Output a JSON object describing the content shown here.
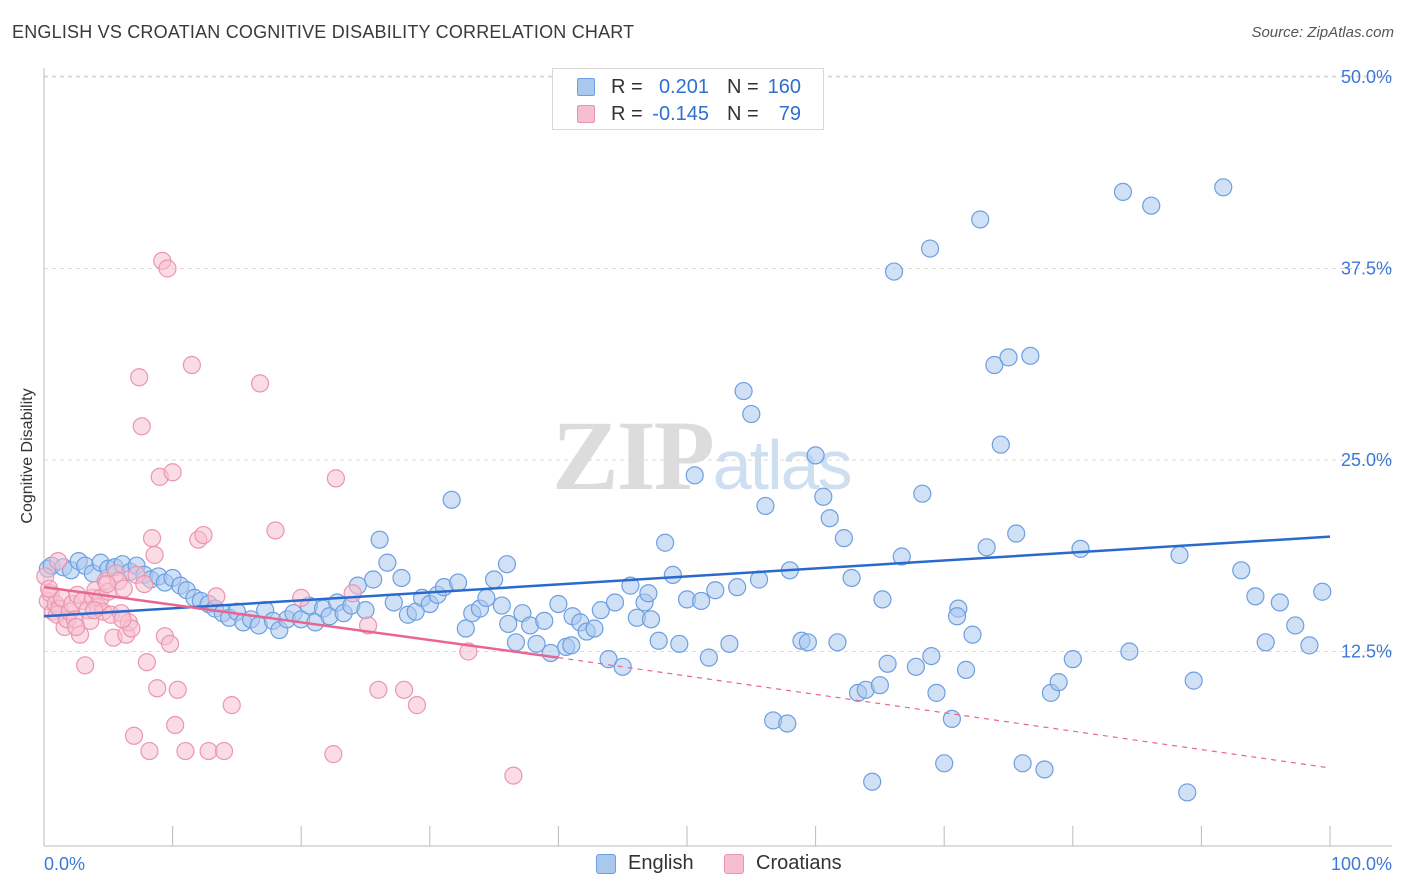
{
  "header": {
    "title": "ENGLISH VS CROATIAN COGNITIVE DISABILITY CORRELATION CHART",
    "source": "Source: ZipAtlas.com"
  },
  "watermark": {
    "zip": "ZIP",
    "atlas": "atlas"
  },
  "legend_top": {
    "rows": [
      {
        "r_label": "R =",
        "r_value": "0.201",
        "n_label": "N =",
        "n_value": "160"
      },
      {
        "r_label": "R =",
        "r_value": "-0.145",
        "n_label": "N =",
        "n_value": "79"
      }
    ]
  },
  "legend_bottom": {
    "items": [
      "English",
      "Croatians"
    ]
  },
  "colors": {
    "english_fill": "#a9c8ee",
    "english_stroke": "#6d9fe0",
    "english_line": "#2a6acd",
    "croatian_fill": "#f6bfd0",
    "croatian_stroke": "#ec95b1",
    "croatian_line": "#e8668f",
    "grid": "#d9d9d9",
    "tick_text": "#3c78d8"
  },
  "chart_data": {
    "type": "scatter",
    "title": "ENGLISH VS CROATIAN COGNITIVE DISABILITY CORRELATION CHART",
    "xlabel": "",
    "ylabel": "Cognitive Disability",
    "xlim": [
      0,
      100
    ],
    "ylim": [
      0,
      52
    ],
    "x_tick_labels": [
      "0.0%",
      "100.0%"
    ],
    "y_ticks": [
      12.5,
      25.0,
      37.5,
      50.0
    ],
    "y_tick_labels": [
      "12.5%",
      "25.0%",
      "37.5%",
      "50.0%"
    ],
    "grid": "horizontal dashed",
    "legend_position": "top-center and bottom",
    "series": [
      {
        "name": "English",
        "r": 0.201,
        "n": 160,
        "trend": {
          "x": [
            0,
            100
          ],
          "y": [
            14.8,
            20.0
          ]
        },
        "points": [
          [
            0.3,
            17.9
          ],
          [
            0.6,
            18.1
          ],
          [
            1.5,
            18.0
          ],
          [
            2.1,
            17.8
          ],
          [
            2.7,
            18.4
          ],
          [
            3.2,
            18.1
          ],
          [
            3.8,
            17.6
          ],
          [
            4.4,
            18.3
          ],
          [
            5.0,
            17.9
          ],
          [
            5.5,
            18.0
          ],
          [
            6.1,
            18.2
          ],
          [
            6.7,
            17.7
          ],
          [
            7.2,
            18.1
          ],
          [
            7.8,
            17.5
          ],
          [
            8.3,
            17.2
          ],
          [
            8.9,
            17.4
          ],
          [
            9.4,
            17.0
          ],
          [
            10.0,
            17.3
          ],
          [
            10.6,
            16.8
          ],
          [
            11.1,
            16.5
          ],
          [
            11.7,
            16.0
          ],
          [
            12.2,
            15.8
          ],
          [
            12.8,
            15.6
          ],
          [
            13.3,
            15.3
          ],
          [
            13.9,
            15.0
          ],
          [
            14.4,
            14.7
          ],
          [
            15.0,
            15.1
          ],
          [
            15.5,
            14.4
          ],
          [
            16.1,
            14.6
          ],
          [
            16.7,
            14.2
          ],
          [
            17.2,
            15.2
          ],
          [
            17.8,
            14.5
          ],
          [
            18.3,
            13.9
          ],
          [
            18.9,
            14.6
          ],
          [
            19.4,
            15.0
          ],
          [
            20.0,
            14.6
          ],
          [
            20.6,
            15.5
          ],
          [
            21.1,
            14.4
          ],
          [
            21.7,
            15.3
          ],
          [
            22.2,
            14.8
          ],
          [
            22.8,
            15.7
          ],
          [
            23.3,
            15.0
          ],
          [
            23.9,
            15.5
          ],
          [
            24.4,
            16.8
          ],
          [
            25.0,
            15.2
          ],
          [
            25.6,
            17.2
          ],
          [
            26.1,
            19.8
          ],
          [
            26.7,
            18.3
          ],
          [
            27.2,
            15.7
          ],
          [
            27.8,
            17.3
          ],
          [
            28.3,
            14.9
          ],
          [
            28.9,
            15.1
          ],
          [
            29.4,
            16.0
          ],
          [
            30.0,
            15.6
          ],
          [
            30.6,
            16.2
          ],
          [
            31.1,
            16.7
          ],
          [
            31.7,
            22.4
          ],
          [
            32.2,
            17.0
          ],
          [
            32.8,
            14.0
          ],
          [
            33.3,
            15.0
          ],
          [
            33.9,
            15.3
          ],
          [
            34.4,
            16.0
          ],
          [
            35.0,
            17.2
          ],
          [
            35.6,
            15.5
          ],
          [
            36.1,
            14.3
          ],
          [
            36.7,
            13.1
          ],
          [
            37.2,
            15.0
          ],
          [
            37.8,
            14.2
          ],
          [
            38.3,
            13.0
          ],
          [
            38.9,
            14.5
          ],
          [
            39.4,
            12.4
          ],
          [
            40.0,
            15.6
          ],
          [
            40.6,
            12.8
          ],
          [
            41.1,
            14.8
          ],
          [
            41.7,
            14.4
          ],
          [
            42.2,
            13.8
          ],
          [
            42.8,
            14.0
          ],
          [
            43.3,
            15.2
          ],
          [
            43.9,
            12.0
          ],
          [
            44.4,
            15.7
          ],
          [
            45.0,
            11.5
          ],
          [
            45.6,
            16.8
          ],
          [
            46.1,
            14.7
          ],
          [
            46.7,
            15.7
          ],
          [
            47.2,
            14.6
          ],
          [
            47.8,
            13.2
          ],
          [
            48.3,
            19.6
          ],
          [
            48.9,
            17.5
          ],
          [
            49.4,
            13.0
          ],
          [
            50.0,
            15.9
          ],
          [
            50.6,
            24.0
          ],
          [
            51.1,
            15.8
          ],
          [
            51.7,
            12.1
          ],
          [
            52.2,
            16.5
          ],
          [
            53.3,
            13.0
          ],
          [
            54.4,
            29.5
          ],
          [
            55.0,
            28.0
          ],
          [
            55.6,
            17.2
          ],
          [
            56.1,
            22.0
          ],
          [
            56.7,
            8.0
          ],
          [
            57.8,
            7.8
          ],
          [
            58.9,
            13.2
          ],
          [
            59.4,
            13.1
          ],
          [
            60.0,
            25.3
          ],
          [
            60.6,
            22.6
          ],
          [
            61.1,
            21.2
          ],
          [
            61.7,
            13.1
          ],
          [
            62.2,
            19.9
          ],
          [
            62.8,
            17.3
          ],
          [
            63.3,
            9.8
          ],
          [
            63.9,
            10.0
          ],
          [
            64.4,
            4.0
          ],
          [
            65.0,
            10.3
          ],
          [
            65.6,
            11.7
          ],
          [
            66.1,
            37.3
          ],
          [
            66.7,
            18.7
          ],
          [
            67.8,
            11.5
          ],
          [
            68.3,
            22.8
          ],
          [
            68.9,
            38.8
          ],
          [
            69.4,
            9.8
          ],
          [
            70.0,
            5.2
          ],
          [
            70.6,
            8.1
          ],
          [
            71.1,
            15.3
          ],
          [
            71.7,
            11.3
          ],
          [
            72.2,
            13.6
          ],
          [
            72.8,
            40.7
          ],
          [
            73.3,
            19.3
          ],
          [
            73.9,
            31.2
          ],
          [
            74.4,
            26.0
          ],
          [
            75.0,
            31.7
          ],
          [
            75.6,
            20.2
          ],
          [
            76.1,
            5.2
          ],
          [
            76.7,
            31.8
          ],
          [
            77.8,
            4.8
          ],
          [
            78.3,
            9.8
          ],
          [
            78.9,
            10.5
          ],
          [
            80.6,
            19.2
          ],
          [
            83.9,
            42.5
          ],
          [
            84.4,
            12.5
          ],
          [
            86.1,
            41.6
          ],
          [
            88.3,
            18.8
          ],
          [
            88.9,
            3.3
          ],
          [
            89.4,
            10.6
          ],
          [
            91.7,
            42.8
          ],
          [
            93.1,
            17.8
          ],
          [
            94.2,
            16.1
          ],
          [
            95.0,
            13.1
          ],
          [
            96.1,
            15.7
          ],
          [
            97.3,
            14.2
          ],
          [
            98.4,
            12.9
          ],
          [
            99.4,
            16.4
          ],
          [
            80.0,
            12.0
          ],
          [
            58.0,
            17.8
          ],
          [
            53.9,
            16.7
          ],
          [
            41.0,
            12.9
          ],
          [
            36.0,
            18.2
          ],
          [
            47.0,
            16.3
          ],
          [
            65.2,
            15.9
          ],
          [
            69.0,
            12.2
          ],
          [
            71.0,
            14.8
          ]
        ]
      },
      {
        "name": "Croatians",
        "r": -0.145,
        "n": 79,
        "trend": {
          "x": [
            0,
            40
          ],
          "y": [
            16.7,
            12.1
          ]
        },
        "trend_dashed": {
          "x": [
            40,
            100
          ],
          "y": [
            12.1,
            4.9
          ]
        },
        "points": [
          [
            0.1,
            17.4
          ],
          [
            0.3,
            15.8
          ],
          [
            0.5,
            16.3
          ],
          [
            0.7,
            15.1
          ],
          [
            0.9,
            15.6
          ],
          [
            1.0,
            14.9
          ],
          [
            1.2,
            15.3
          ],
          [
            1.4,
            16.0
          ],
          [
            1.6,
            14.1
          ],
          [
            1.8,
            14.6
          ],
          [
            2.0,
            15.1
          ],
          [
            2.2,
            15.6
          ],
          [
            2.4,
            14.6
          ],
          [
            2.6,
            16.2
          ],
          [
            2.8,
            13.6
          ],
          [
            3.0,
            15.8
          ],
          [
            3.2,
            11.6
          ],
          [
            3.4,
            15.2
          ],
          [
            3.6,
            14.5
          ],
          [
            3.8,
            16.0
          ],
          [
            4.0,
            16.5
          ],
          [
            4.2,
            15.4
          ],
          [
            4.4,
            16.0
          ],
          [
            4.6,
            15.1
          ],
          [
            4.8,
            17.1
          ],
          [
            5.0,
            16.4
          ],
          [
            5.2,
            14.9
          ],
          [
            5.4,
            13.4
          ],
          [
            5.6,
            17.6
          ],
          [
            5.8,
            17.1
          ],
          [
            6.0,
            15.0
          ],
          [
            6.2,
            16.6
          ],
          [
            6.4,
            13.6
          ],
          [
            6.6,
            14.4
          ],
          [
            6.8,
            14.0
          ],
          [
            7.0,
            7.0
          ],
          [
            7.2,
            17.5
          ],
          [
            7.4,
            30.4
          ],
          [
            7.6,
            27.2
          ],
          [
            7.8,
            16.9
          ],
          [
            8.0,
            11.8
          ],
          [
            8.2,
            6.0
          ],
          [
            8.4,
            19.9
          ],
          [
            8.6,
            18.8
          ],
          [
            8.8,
            10.1
          ],
          [
            9.0,
            23.9
          ],
          [
            9.2,
            38.0
          ],
          [
            9.4,
            13.5
          ],
          [
            9.6,
            37.5
          ],
          [
            9.8,
            13.0
          ],
          [
            10.0,
            24.2
          ],
          [
            10.2,
            7.7
          ],
          [
            10.4,
            10.0
          ],
          [
            11.0,
            6.0
          ],
          [
            11.5,
            31.2
          ],
          [
            12.0,
            19.8
          ],
          [
            12.4,
            20.1
          ],
          [
            12.8,
            6.0
          ],
          [
            13.4,
            16.1
          ],
          [
            14.0,
            6.0
          ],
          [
            14.6,
            9.0
          ],
          [
            16.8,
            30.0
          ],
          [
            18.0,
            20.4
          ],
          [
            20.0,
            16.0
          ],
          [
            22.5,
            5.8
          ],
          [
            22.7,
            23.8
          ],
          [
            24.0,
            16.3
          ],
          [
            25.2,
            14.2
          ],
          [
            26.0,
            10.0
          ],
          [
            28.0,
            10.0
          ],
          [
            29.0,
            9.0
          ],
          [
            33.0,
            12.5
          ],
          [
            36.5,
            4.4
          ],
          [
            1.1,
            18.4
          ],
          [
            2.5,
            14.1
          ],
          [
            3.9,
            15.2
          ],
          [
            6.1,
            14.6
          ],
          [
            4.9,
            16.9
          ],
          [
            0.4,
            16.6
          ]
        ]
      }
    ]
  }
}
